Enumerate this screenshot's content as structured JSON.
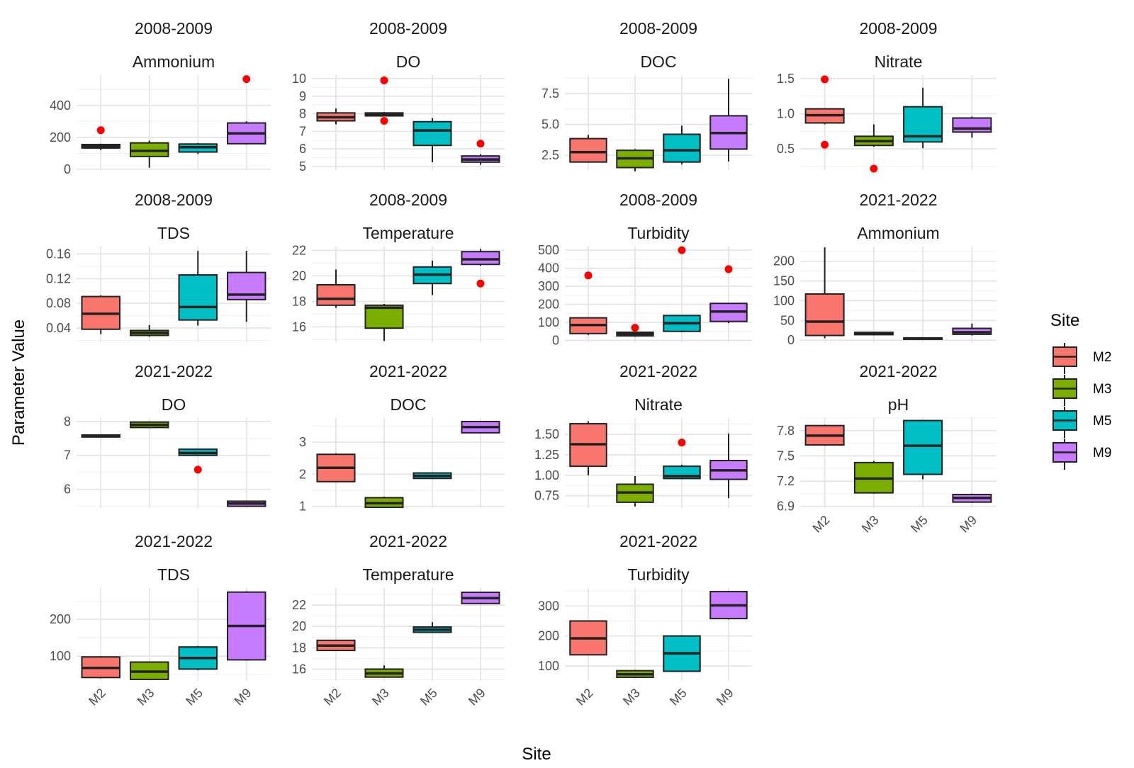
{
  "chart_data": {
    "type": "boxplot",
    "xlabel": "Site",
    "ylabel": "Parameter Value",
    "categories": [
      "M2",
      "M3",
      "M5",
      "M9"
    ],
    "legend": {
      "title": "Site",
      "position": "right",
      "items": [
        {
          "label": "M2",
          "color": "#F8766D"
        },
        {
          "label": "M3",
          "color": "#7CAE00"
        },
        {
          "label": "M5",
          "color": "#00BFC4"
        },
        {
          "label": "M9",
          "color": "#C77CFF"
        }
      ]
    },
    "outlier_color": "#FF0000",
    "grid": true,
    "panels": [
      {
        "period": "2008-2009",
        "parameter": "Ammonium",
        "ylim": [
          -5,
          590
        ],
        "yticks": [
          0,
          200,
          400
        ],
        "ytick_labels": [
          "0",
          "200",
          "400"
        ],
        "show_x_labels": false,
        "boxes": [
          {
            "site": "M2",
            "min": 120,
            "q1": 133,
            "median": 145,
            "q3": 155,
            "max": 160,
            "outliers": [
              245
            ]
          },
          {
            "site": "M3",
            "min": 10,
            "q1": 80,
            "median": 115,
            "q3": 165,
            "max": 180,
            "outliers": []
          },
          {
            "site": "M5",
            "min": 95,
            "q1": 108,
            "median": 138,
            "q3": 158,
            "max": 165,
            "outliers": []
          },
          {
            "site": "M9",
            "min": 155,
            "q1": 160,
            "median": 225,
            "q3": 290,
            "max": 300,
            "outliers": [
              565
            ]
          }
        ]
      },
      {
        "period": "2008-2009",
        "parameter": "DO",
        "ylim": [
          4.8,
          10.2
        ],
        "yticks": [
          5,
          6,
          7,
          8,
          9,
          10
        ],
        "ytick_labels": [
          "5",
          "6",
          "7",
          "8",
          "9",
          "10"
        ],
        "show_x_labels": false,
        "boxes": [
          {
            "site": "M2",
            "min": 7.4,
            "q1": 7.6,
            "median": 7.8,
            "q3": 8.05,
            "max": 8.3,
            "outliers": []
          },
          {
            "site": "M3",
            "min": 7.85,
            "q1": 7.88,
            "median": 7.95,
            "q3": 8.05,
            "max": 8.1,
            "outliers": [
              9.9,
              7.6
            ]
          },
          {
            "site": "M5",
            "min": 5.25,
            "q1": 6.2,
            "median": 7.05,
            "q3": 7.55,
            "max": 7.75,
            "outliers": []
          },
          {
            "site": "M9",
            "min": 5.1,
            "q1": 5.25,
            "median": 5.4,
            "q3": 5.6,
            "max": 5.7,
            "outliers": [
              6.3
            ]
          }
        ]
      },
      {
        "period": "2008-2009",
        "parameter": "DOC",
        "ylim": [
          1.3,
          9.0
        ],
        "yticks": [
          2.5,
          5.0,
          7.5
        ],
        "ytick_labels": [
          "2.5",
          "5.0",
          "7.5"
        ],
        "show_x_labels": false,
        "boxes": [
          {
            "site": "M2",
            "min": 1.9,
            "q1": 1.95,
            "median": 2.75,
            "q3": 3.85,
            "max": 4.15,
            "outliers": []
          },
          {
            "site": "M3",
            "min": 1.2,
            "q1": 1.5,
            "median": 2.25,
            "q3": 2.9,
            "max": 3.0,
            "outliers": []
          },
          {
            "site": "M5",
            "min": 1.75,
            "q1": 1.95,
            "median": 2.9,
            "q3": 4.2,
            "max": 4.9,
            "outliers": []
          },
          {
            "site": "M9",
            "min": 2.0,
            "q1": 3.0,
            "median": 4.3,
            "q3": 5.7,
            "max": 8.7,
            "outliers": []
          }
        ]
      },
      {
        "period": "2008-2009",
        "parameter": "Nitrate",
        "ylim": [
          0.2,
          1.55
        ],
        "yticks": [
          0.5,
          1.0,
          1.5
        ],
        "ytick_labels": [
          "0.5",
          "1.0",
          "1.5"
        ],
        "show_x_labels": false,
        "boxes": [
          {
            "site": "M2",
            "min": 0.85,
            "q1": 0.87,
            "median": 0.98,
            "q3": 1.07,
            "max": 1.08,
            "outliers": [
              1.49,
              0.56
            ]
          },
          {
            "site": "M3",
            "min": 0.53,
            "q1": 0.55,
            "median": 0.61,
            "q3": 0.68,
            "max": 0.85,
            "outliers": [
              0.22
            ]
          },
          {
            "site": "M5",
            "min": 0.51,
            "q1": 0.6,
            "median": 0.68,
            "q3": 1.1,
            "max": 1.37,
            "outliers": []
          },
          {
            "site": "M9",
            "min": 0.66,
            "q1": 0.74,
            "median": 0.79,
            "q3": 0.94,
            "max": 0.96,
            "outliers": []
          }
        ]
      },
      {
        "period": "2008-2009",
        "parameter": "TDS",
        "ylim": [
          0.017,
          0.172
        ],
        "yticks": [
          0.04,
          0.08,
          0.12,
          0.16
        ],
        "ytick_labels": [
          "0.04",
          "0.08",
          "0.12",
          "0.16"
        ],
        "show_x_labels": false,
        "boxes": [
          {
            "site": "M2",
            "min": 0.03,
            "q1": 0.038,
            "median": 0.063,
            "q3": 0.091,
            "max": 0.093,
            "outliers": []
          },
          {
            "site": "M3",
            "min": 0.026,
            "q1": 0.028,
            "median": 0.032,
            "q3": 0.036,
            "max": 0.045,
            "outliers": []
          },
          {
            "site": "M5",
            "min": 0.044,
            "q1": 0.053,
            "median": 0.074,
            "q3": 0.126,
            "max": 0.165,
            "outliers": []
          },
          {
            "site": "M9",
            "min": 0.05,
            "q1": 0.086,
            "median": 0.094,
            "q3": 0.13,
            "max": 0.165,
            "outliers": []
          }
        ]
      },
      {
        "period": "2008-2009",
        "parameter": "Temperature",
        "ylim": [
          14.8,
          22.3
        ],
        "yticks": [
          16,
          18,
          20,
          22
        ],
        "ytick_labels": [
          "16",
          "18",
          "20",
          "22"
        ],
        "show_x_labels": false,
        "boxes": [
          {
            "site": "M2",
            "min": 17.5,
            "q1": 17.7,
            "median": 18.2,
            "q3": 19.3,
            "max": 20.5,
            "outliers": []
          },
          {
            "site": "M3",
            "min": 14.9,
            "q1": 15.9,
            "median": 17.5,
            "q3": 17.7,
            "max": 17.8,
            "outliers": []
          },
          {
            "site": "M5",
            "min": 18.5,
            "q1": 19.4,
            "median": 20.1,
            "q3": 20.7,
            "max": 21.2,
            "outliers": []
          },
          {
            "site": "M9",
            "min": 20.8,
            "q1": 20.9,
            "median": 21.3,
            "q3": 21.9,
            "max": 22.1,
            "outliers": [
              19.4
            ]
          }
        ]
      },
      {
        "period": "2008-2009",
        "parameter": "Turbidity",
        "ylim": [
          -10,
          520
        ],
        "yticks": [
          0,
          100,
          200,
          300,
          400,
          500
        ],
        "ytick_labels": [
          "0",
          "100",
          "200",
          "300",
          "400",
          "500"
        ],
        "show_x_labels": false,
        "boxes": [
          {
            "site": "M2",
            "min": 30,
            "q1": 38,
            "median": 85,
            "q3": 125,
            "max": 128,
            "outliers": [
              360
            ]
          },
          {
            "site": "M3",
            "min": 20,
            "q1": 25,
            "median": 35,
            "q3": 45,
            "max": 50,
            "outliers": [
              70
            ]
          },
          {
            "site": "M5",
            "min": 45,
            "q1": 50,
            "median": 95,
            "q3": 138,
            "max": 140,
            "outliers": [
              500
            ]
          },
          {
            "site": "M9",
            "min": 95,
            "q1": 105,
            "median": 160,
            "q3": 205,
            "max": 208,
            "outliers": [
              395
            ]
          }
        ]
      },
      {
        "period": "2021-2022",
        "parameter": "Ammonium",
        "ylim": [
          -5,
          237
        ],
        "yticks": [
          0,
          50,
          100,
          150,
          200
        ],
        "ytick_labels": [
          "0",
          "50",
          "100",
          "150",
          "200"
        ],
        "show_x_labels": false,
        "boxes": [
          {
            "site": "M2",
            "min": 5,
            "q1": 12,
            "median": 47,
            "q3": 117,
            "max": 235,
            "outliers": []
          },
          {
            "site": "M3",
            "min": 12,
            "q1": 14,
            "median": 17,
            "q3": 20,
            "max": 21,
            "outliers": []
          },
          {
            "site": "M5",
            "min": 2,
            "q1": 3,
            "median": 4,
            "q3": 6,
            "max": 7,
            "outliers": []
          },
          {
            "site": "M9",
            "min": 12,
            "q1": 15,
            "median": 20,
            "q3": 30,
            "max": 42,
            "outliers": []
          }
        ]
      },
      {
        "period": "2021-2022",
        "parameter": "DO",
        "ylim": [
          5.45,
          8.1
        ],
        "yticks": [
          6,
          7,
          8
        ],
        "ytick_labels": [
          "6",
          "7",
          "8"
        ],
        "show_x_labels": false,
        "boxes": [
          {
            "site": "M2",
            "min": 7.53,
            "q1": 7.54,
            "median": 7.57,
            "q3": 7.6,
            "max": 7.61,
            "outliers": []
          },
          {
            "site": "M3",
            "min": 7.8,
            "q1": 7.82,
            "median": 7.9,
            "q3": 7.98,
            "max": 8.0,
            "outliers": []
          },
          {
            "site": "M5",
            "min": 6.98,
            "q1": 7.0,
            "median": 7.07,
            "q3": 7.18,
            "max": 7.2,
            "outliers": [
              6.58
            ]
          },
          {
            "site": "M9",
            "min": 5.48,
            "q1": 5.5,
            "median": 5.58,
            "q3": 5.65,
            "max": 5.67,
            "outliers": []
          }
        ]
      },
      {
        "period": "2021-2022",
        "parameter": "DOC",
        "ylim": [
          0.95,
          3.75
        ],
        "yticks": [
          1,
          2,
          3
        ],
        "ytick_labels": [
          "1",
          "2",
          "3"
        ],
        "show_x_labels": false,
        "boxes": [
          {
            "site": "M2",
            "min": 1.75,
            "q1": 1.77,
            "median": 2.2,
            "q3": 2.62,
            "max": 2.65,
            "outliers": []
          },
          {
            "site": "M3",
            "min": 0.95,
            "q1": 0.97,
            "median": 1.1,
            "q3": 1.27,
            "max": 1.3,
            "outliers": []
          },
          {
            "site": "M5",
            "min": 1.85,
            "q1": 1.87,
            "median": 1.95,
            "q3": 2.04,
            "max": 2.06,
            "outliers": []
          },
          {
            "site": "M9",
            "min": 3.27,
            "q1": 3.29,
            "median": 3.47,
            "q3": 3.64,
            "max": 3.66,
            "outliers": []
          }
        ]
      },
      {
        "period": "2021-2022",
        "parameter": "Nitrate",
        "ylim": [
          0.6,
          1.7
        ],
        "yticks": [
          0.75,
          1.0,
          1.25,
          1.5
        ],
        "ytick_labels": [
          "0.75",
          "1.00",
          "1.25",
          "1.50"
        ],
        "show_x_labels": false,
        "boxes": [
          {
            "site": "M2",
            "min": 1.0,
            "q1": 1.11,
            "median": 1.38,
            "q3": 1.63,
            "max": 1.66,
            "outliers": []
          },
          {
            "site": "M3",
            "min": 0.62,
            "q1": 0.67,
            "median": 0.79,
            "q3": 0.89,
            "max": 0.99,
            "outliers": []
          },
          {
            "site": "M5",
            "min": 0.95,
            "q1": 0.96,
            "median": 0.99,
            "q3": 1.11,
            "max": 1.13,
            "outliers": [
              1.4
            ]
          },
          {
            "site": "M9",
            "min": 0.72,
            "q1": 0.95,
            "median": 1.06,
            "q3": 1.18,
            "max": 1.51,
            "outliers": []
          }
        ]
      },
      {
        "period": "2021-2022",
        "parameter": "pH",
        "ylim": [
          6.88,
          7.95
        ],
        "yticks": [
          6.9,
          7.2,
          7.5,
          7.8
        ],
        "ytick_labels": [
          "6.9",
          "7.2",
          "7.5",
          "7.8"
        ],
        "show_x_labels": true,
        "boxes": [
          {
            "site": "M2",
            "min": 7.62,
            "q1": 7.63,
            "median": 7.74,
            "q3": 7.86,
            "max": 7.87,
            "outliers": []
          },
          {
            "site": "M3",
            "min": 7.05,
            "q1": 7.06,
            "median": 7.23,
            "q3": 7.42,
            "max": 7.44,
            "outliers": []
          },
          {
            "site": "M5",
            "min": 7.22,
            "q1": 7.28,
            "median": 7.62,
            "q3": 7.92,
            "max": 7.92,
            "outliers": []
          },
          {
            "site": "M9",
            "min": 6.94,
            "q1": 6.95,
            "median": 7.0,
            "q3": 7.04,
            "max": 7.05,
            "outliers": []
          }
        ]
      },
      {
        "period": "2021-2022",
        "parameter": "TDS",
        "ylim": [
          33,
          285
        ],
        "yticks": [
          100,
          200
        ],
        "ytick_labels": [
          "100",
          "200"
        ],
        "show_x_labels": true,
        "boxes": [
          {
            "site": "M2",
            "min": 40,
            "q1": 42,
            "median": 68,
            "q3": 98,
            "max": 100,
            "outliers": []
          },
          {
            "site": "M3",
            "min": 35,
            "q1": 37,
            "median": 58,
            "q3": 84,
            "max": 86,
            "outliers": []
          },
          {
            "site": "M5",
            "min": 62,
            "q1": 65,
            "median": 95,
            "q3": 125,
            "max": 128,
            "outliers": []
          },
          {
            "site": "M9",
            "min": 88,
            "q1": 90,
            "median": 182,
            "q3": 274,
            "max": 276,
            "outliers": []
          }
        ]
      },
      {
        "period": "2021-2022",
        "parameter": "Temperature",
        "ylim": [
          14.9,
          23.6
        ],
        "yticks": [
          16,
          18,
          20,
          22
        ],
        "ytick_labels": [
          "16",
          "18",
          "20",
          "22"
        ],
        "show_x_labels": true,
        "boxes": [
          {
            "site": "M2",
            "min": 17.7,
            "q1": 17.75,
            "median": 18.2,
            "q3": 18.7,
            "max": 18.75,
            "outliers": []
          },
          {
            "site": "M3",
            "min": 15.2,
            "q1": 15.25,
            "median": 15.6,
            "q3": 16.0,
            "max": 16.35,
            "outliers": []
          },
          {
            "site": "M5",
            "min": 19.4,
            "q1": 19.45,
            "median": 19.7,
            "q3": 19.95,
            "max": 20.4,
            "outliers": []
          },
          {
            "site": "M9",
            "min": 22.1,
            "q1": 22.15,
            "median": 22.65,
            "q3": 23.2,
            "max": 23.25,
            "outliers": []
          }
        ]
      },
      {
        "period": "2021-2022",
        "parameter": "Turbidity",
        "ylim": [
          50,
          360
        ],
        "yticks": [
          100,
          200,
          300
        ],
        "ytick_labels": [
          "100",
          "200",
          "300"
        ],
        "show_x_labels": true,
        "boxes": [
          {
            "site": "M2",
            "min": 135,
            "q1": 137,
            "median": 192,
            "q3": 250,
            "max": 252,
            "outliers": []
          },
          {
            "site": "M3",
            "min": 60,
            "q1": 62,
            "median": 72,
            "q3": 84,
            "max": 86,
            "outliers": []
          },
          {
            "site": "M5",
            "min": 80,
            "q1": 82,
            "median": 142,
            "q3": 200,
            "max": 202,
            "outliers": []
          },
          {
            "site": "M9",
            "min": 255,
            "q1": 258,
            "median": 302,
            "q3": 348,
            "max": 350,
            "outliers": []
          }
        ]
      }
    ]
  }
}
